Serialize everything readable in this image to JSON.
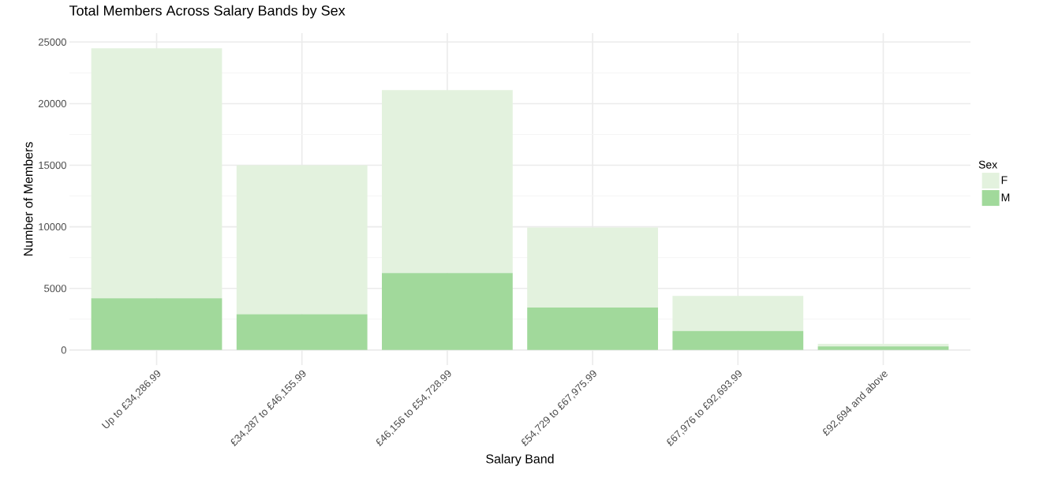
{
  "chart_data": {
    "type": "bar",
    "stacked": true,
    "title": "Total Members Across Salary Bands by Sex",
    "xlabel": "Salary Band",
    "ylabel": "Number of Members",
    "legend_title": "Sex",
    "categories": [
      "Up to £34,286.99",
      "£34,287 to £46,155.99",
      "£46,156 to £54,728.99",
      "£54,729 to £67,975.99",
      "£67,976 to £92,693.99",
      "£92,694 and above"
    ],
    "series": [
      {
        "name": "M",
        "color": "#a1d99b",
        "values": [
          4200,
          2900,
          6250,
          3450,
          1550,
          300
        ]
      },
      {
        "name": "F",
        "color": "#e3f2de",
        "values": [
          20300,
          12100,
          14850,
          6500,
          2850,
          200
        ]
      }
    ],
    "ylim": [
      -1225,
      25725
    ],
    "yticks": [
      0,
      5000,
      10000,
      15000,
      20000,
      25000
    ],
    "grid": true,
    "legend": "right"
  }
}
